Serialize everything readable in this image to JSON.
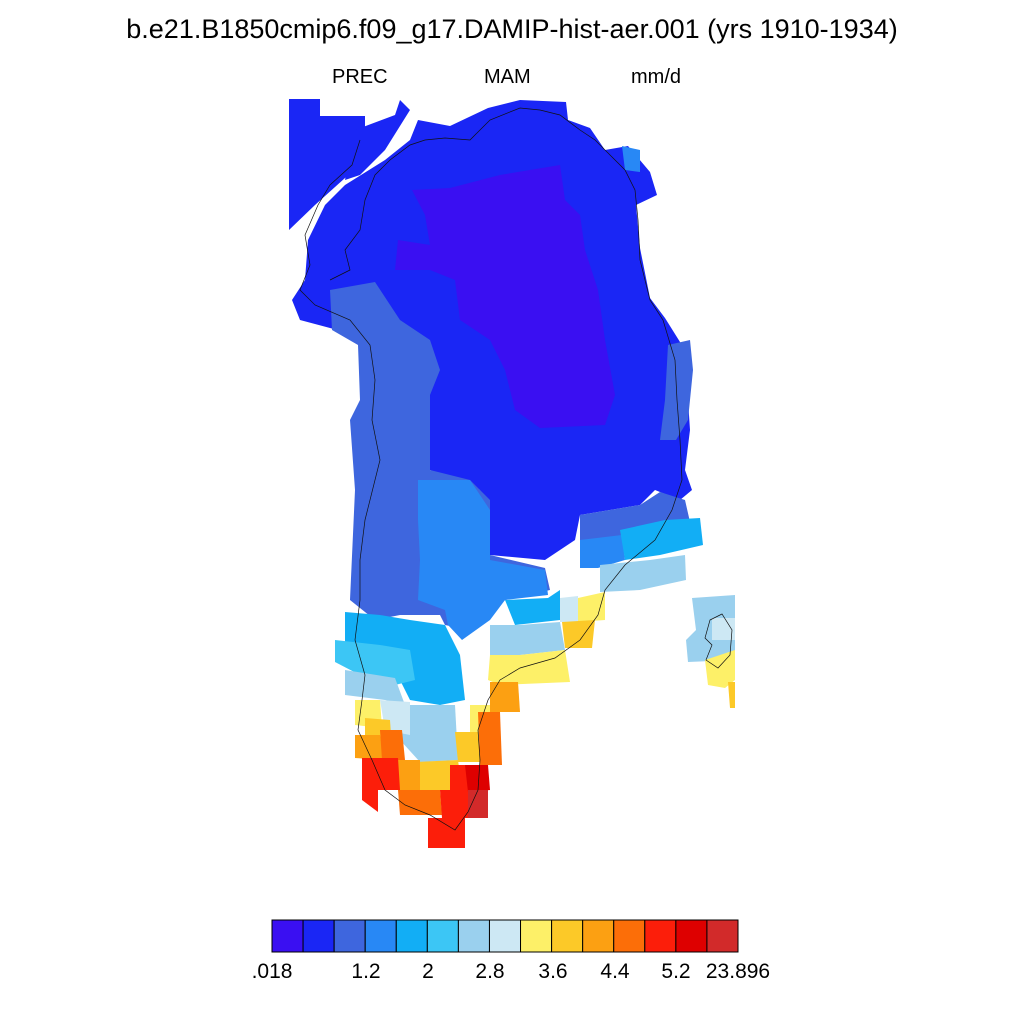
{
  "header": {
    "title": "b.e21.B1850cmip6.f09_g17.DAMIP-hist-aer.001 (yrs 1910-1934)",
    "variable": "PREC",
    "season": "MAM",
    "units": "mm/d"
  },
  "colorbar": {
    "colors": [
      "#3a0ff2",
      "#1a26f5",
      "#3e66de",
      "#2888f5",
      "#12aef5",
      "#3cc6f5",
      "#9ad0ee",
      "#cde8f4",
      "#fdf068",
      "#fcc928",
      "#fca012",
      "#fc6e08",
      "#fc1e0a",
      "#de0000",
      "#d22a2a"
    ],
    "labels": [
      ".018",
      "",
      "1.2",
      "2",
      "2.8",
      "3.6",
      "4.4",
      "5.2",
      "23.896"
    ]
  },
  "map": {
    "region": "Greenland",
    "field": "precipitation",
    "note": "low values over northern/central interior, highest values along the southern tip"
  }
}
